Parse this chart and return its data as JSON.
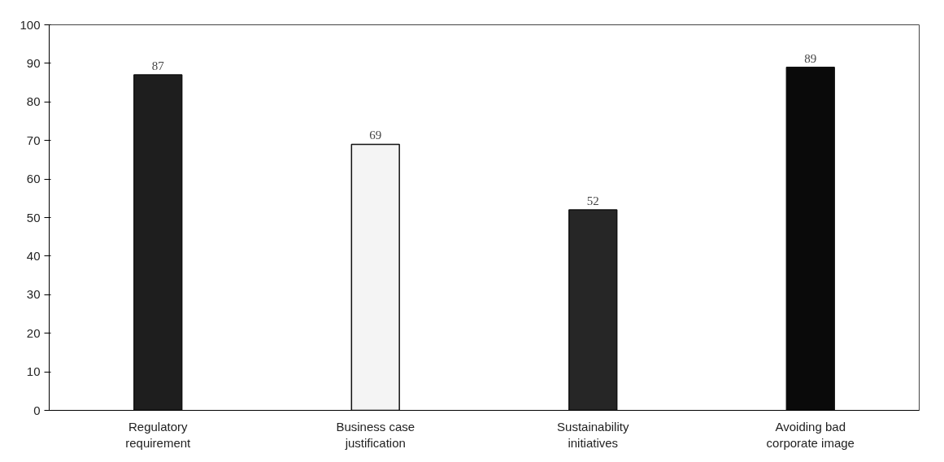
{
  "chart_data": {
    "type": "bar",
    "categories": [
      "Regulatory requirement",
      "Business case justification",
      "Sustainability initiatives",
      "Avoiding bad corporate image"
    ],
    "values": [
      87,
      69,
      52,
      89
    ],
    "colors": [
      "#1e1e1e",
      "#f4f4f4",
      "#262626",
      "#0a0a0a"
    ],
    "ylim": [
      0,
      100
    ],
    "yticks": [
      0,
      10,
      20,
      30,
      40,
      50,
      60,
      70,
      80,
      90,
      100
    ],
    "grid": false,
    "data_labels": true
  }
}
